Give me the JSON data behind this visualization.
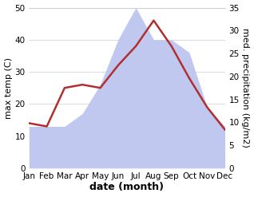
{
  "months": [
    "Jan",
    "Feb",
    "Mar",
    "Apr",
    "May",
    "Jun",
    "Jul",
    "Aug",
    "Sep",
    "Oct",
    "Nov",
    "Dec"
  ],
  "month_positions": [
    0,
    1,
    2,
    3,
    4,
    5,
    6,
    7,
    8,
    9,
    10,
    11
  ],
  "temp": [
    14,
    13,
    25,
    26,
    25,
    32,
    38,
    46,
    38,
    28,
    19,
    12
  ],
  "precip_left_scale": [
    13,
    13,
    13,
    17,
    26,
    40,
    50,
    40,
    40,
    36,
    19,
    13
  ],
  "temp_color": "#b03030",
  "precip_fill_color": "#c0c8f0",
  "background_color": "#ffffff",
  "left_ylabel": "max temp (C)",
  "right_ylabel": "med. precipitation (kg/m2)",
  "xlabel": "date (month)",
  "left_ylim": [
    0,
    50
  ],
  "right_ylim": [
    0,
    35
  ],
  "left_yticks": [
    0,
    10,
    20,
    30,
    40,
    50
  ],
  "right_yticks": [
    0,
    5,
    10,
    15,
    20,
    25,
    30,
    35
  ],
  "axis_fontsize": 8,
  "tick_fontsize": 7.5,
  "xlabel_fontsize": 9,
  "linewidth": 1.8
}
